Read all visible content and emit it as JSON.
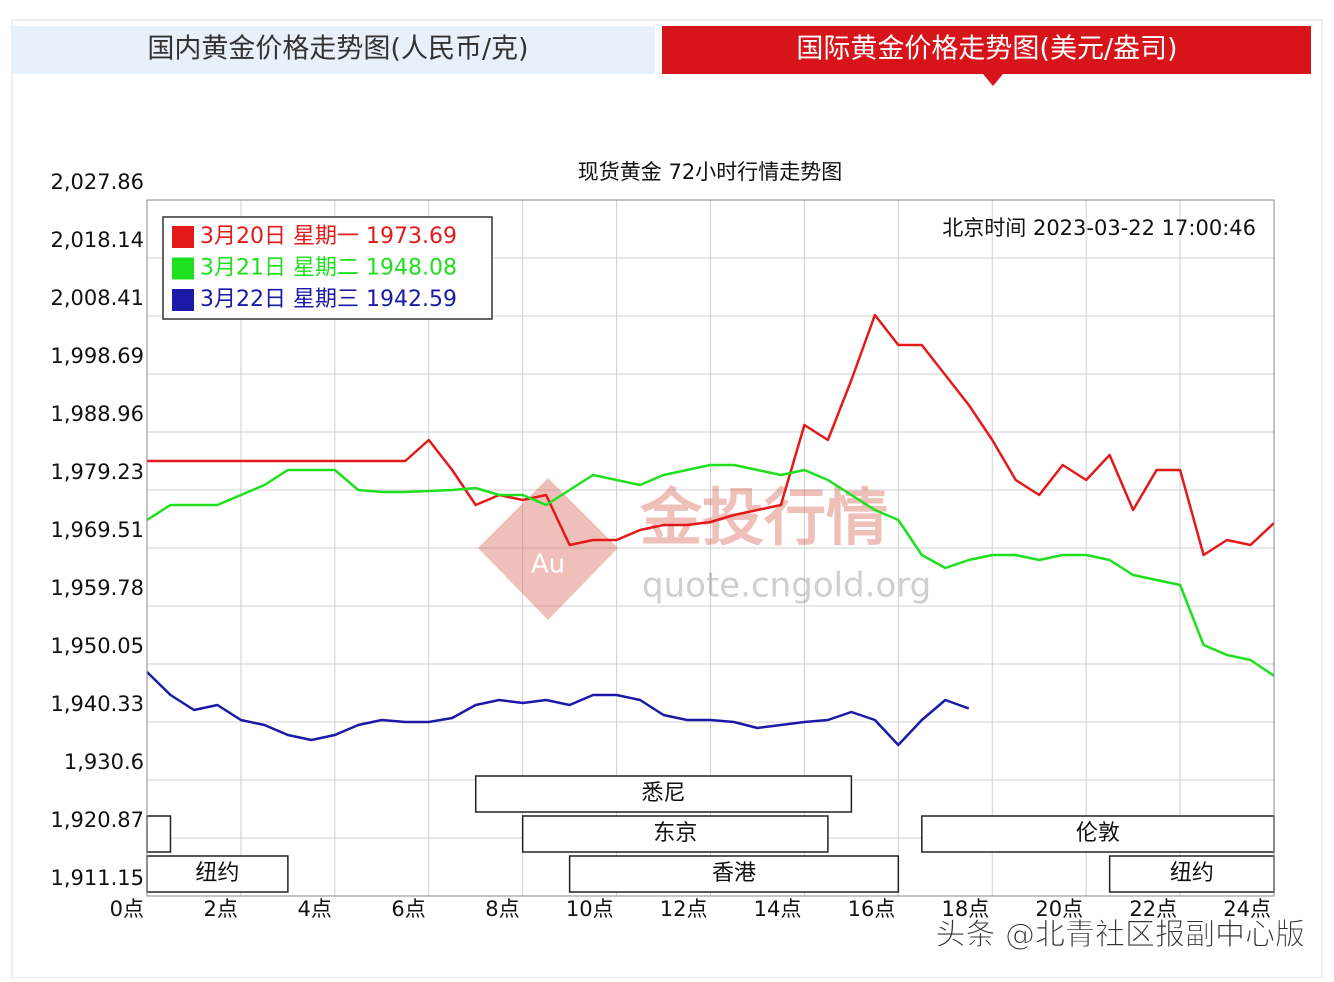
{
  "tabs": [
    "国内黄金价格走势图(人民币/克)",
    "国际黄金价格走势图(美元/盎司)"
  ],
  "chart_data": {
    "type": "line",
    "title": "现货黄金  72小时行情走势图",
    "annotation": "北京时间  2023-03-22 17:00:46",
    "x": [
      0,
      0.5,
      1,
      1.5,
      2,
      2.5,
      3,
      3.5,
      4,
      4.5,
      5,
      5.5,
      6,
      6.5,
      7,
      7.5,
      8,
      8.5,
      9,
      9.5,
      10,
      10.5,
      11,
      11.5,
      12,
      12.5,
      13,
      13.5,
      14,
      14.5,
      15,
      15.5,
      16,
      16.5,
      17,
      17.5,
      18,
      18.5,
      19,
      19.5,
      20,
      20.5,
      21,
      21.5,
      22,
      22.5,
      23,
      23.5,
      24
    ],
    "series": [
      {
        "name": "3月20日 星期一 1973.69",
        "color": "#e31a1a",
        "values": [
          1984.09,
          1984.09,
          1984.09,
          1984.09,
          1984.09,
          1984.09,
          1984.09,
          1984.09,
          1984.09,
          1984.09,
          1984.09,
          1984.09,
          1987.61,
          1982.58,
          1976.71,
          1978.39,
          1977.55,
          1978.39,
          1970.01,
          1970.85,
          1970.85,
          1972.52,
          1973.36,
          1973.36,
          1973.87,
          1975.04,
          1975.88,
          1976.71,
          1990.13,
          1987.61,
          1997.68,
          2008.58,
          2003.54,
          2003.54,
          1998.51,
          1993.48,
          1987.61,
          1980.91,
          1978.39,
          1983.42,
          1980.91,
          1985.1,
          1975.88,
          1982.58,
          1982.58,
          1968.33,
          1970.85,
          1970.01,
          1973.69
        ]
      },
      {
        "name": "3月21日 星期二 1948.08",
        "color": "#1ee01e",
        "values": [
          1974.2,
          1976.71,
          1976.71,
          1976.71,
          1978.39,
          1980.07,
          1982.58,
          1982.58,
          1982.58,
          1979.23,
          1978.9,
          1978.9,
          1979.06,
          1979.23,
          1979.56,
          1978.39,
          1978.39,
          1976.71,
          1979.23,
          1981.75,
          1980.91,
          1980.07,
          1981.75,
          1982.58,
          1983.42,
          1983.42,
          1982.58,
          1981.75,
          1982.58,
          1980.91,
          1978.39,
          1975.88,
          1974.2,
          1968.33,
          1966.15,
          1967.49,
          1968.33,
          1968.33,
          1967.49,
          1968.33,
          1968.33,
          1967.49,
          1964.97,
          1964.14,
          1963.3,
          1953.24,
          1951.56,
          1950.72,
          1948.08
        ]
      },
      {
        "name": "3月22日 星期三 1942.59",
        "color": "#1a1aa6",
        "values": [
          1948.71,
          1944.85,
          1942.34,
          1943.18,
          1940.66,
          1939.82,
          1938.15,
          1937.31,
          1938.15,
          1939.82,
          1940.66,
          1940.33,
          1940.33,
          1940.99,
          1943.18,
          1944.01,
          1943.51,
          1944.01,
          1943.18,
          1944.85,
          1944.85,
          1944.01,
          1941.5,
          1940.66,
          1940.66,
          1940.33,
          1939.32,
          1939.82,
          1940.33,
          1940.66,
          1942.0,
          1940.66,
          1936.47,
          1940.66,
          1944.01,
          1942.59,
          null,
          null,
          null,
          null,
          null,
          null,
          null,
          null,
          null,
          null,
          null,
          null,
          null
        ]
      }
    ],
    "xlim": [
      0,
      24
    ],
    "xticks": [
      {
        "value": 0,
        "label": "0点"
      },
      {
        "value": 2,
        "label": "2点"
      },
      {
        "value": 4,
        "label": "4点"
      },
      {
        "value": 6,
        "label": "6点"
      },
      {
        "value": 8,
        "label": "8点"
      },
      {
        "value": 10,
        "label": "10点"
      },
      {
        "value": 12,
        "label": "12点"
      },
      {
        "value": 14,
        "label": "14点"
      },
      {
        "value": 16,
        "label": "16点"
      },
      {
        "value": 18,
        "label": "18点"
      },
      {
        "value": 20,
        "label": "20点"
      },
      {
        "value": 22,
        "label": "22点"
      },
      {
        "value": 24,
        "label": "24点"
      }
    ],
    "ylim": [
      1911.15,
      2027.86
    ],
    "yticks": [
      {
        "value": 2027.86,
        "label": "2,027.86"
      },
      {
        "value": 2018.14,
        "label": "2,018.14"
      },
      {
        "value": 2008.41,
        "label": "2,008.41"
      },
      {
        "value": 1998.69,
        "label": "1,998.69"
      },
      {
        "value": 1988.96,
        "label": "1,988.96"
      },
      {
        "value": 1979.23,
        "label": "1,979.23"
      },
      {
        "value": 1969.51,
        "label": "1,969.51"
      },
      {
        "value": 1959.78,
        "label": "1,959.78"
      },
      {
        "value": 1950.05,
        "label": "1,950.05"
      },
      {
        "value": 1940.33,
        "label": "1,940.33"
      },
      {
        "value": 1930.6,
        "label": "1,930.6"
      },
      {
        "value": 1920.87,
        "label": "1,920.87"
      },
      {
        "value": 1911.15,
        "label": "1,911.15"
      }
    ],
    "grid": true,
    "legend": "upper left",
    "sessions": [
      {
        "label": "悉尼",
        "start": 7,
        "end": 15
      },
      {
        "label": "东京",
        "start": 8,
        "end": 14.5
      },
      {
        "label": "香港",
        "start": 9,
        "end": 16
      },
      {
        "label": null,
        "start": 0,
        "end": 0.5
      },
      {
        "label": "纽约",
        "start": 0,
        "end": 3
      },
      {
        "label": "伦敦",
        "start": 16.5,
        "end": 24
      },
      {
        "label": "纽约",
        "start": 20.5,
        "end": 24
      }
    ]
  },
  "watermark": {
    "logo": "Au",
    "name": "金投行情",
    "url": "quote.cngold.org"
  },
  "footer": "头条 @北青社区报副中心版"
}
